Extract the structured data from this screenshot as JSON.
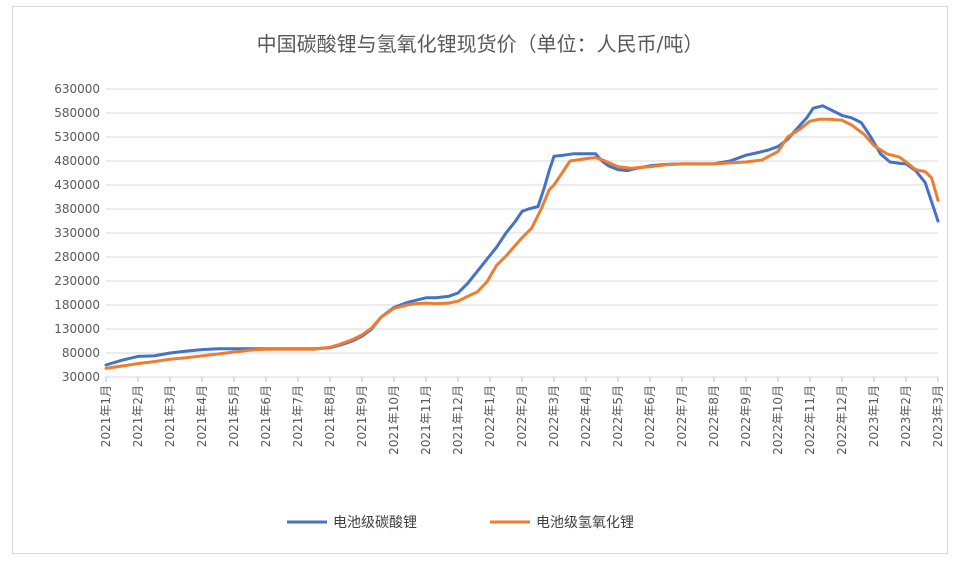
{
  "chart_data": {
    "type": "line",
    "title": "中国碳酸锂与氢氧化锂现货价（单位：人民币/吨）",
    "xlabel": "",
    "ylabel": "",
    "ylim": [
      30000,
      630000
    ],
    "y_ticks": [
      30000,
      80000,
      130000,
      180000,
      230000,
      280000,
      330000,
      380000,
      430000,
      480000,
      530000,
      580000,
      630000
    ],
    "y_tick_labels": [
      "30000",
      "80000",
      "130000",
      "180000",
      "230000",
      "280000",
      "330000",
      "380000",
      "430000",
      "480000",
      "530000",
      "580000",
      "630000"
    ],
    "x_tick_labels": [
      "2021年1月",
      "2021年2月",
      "2021年3月",
      "2021年4月",
      "2021年5月",
      "2021年6月",
      "2021年7月",
      "2021年8月",
      "2021年9月",
      "2021年10月",
      "2021年11月",
      "2021年12月",
      "2022年1月",
      "2022年2月",
      "2022年3月",
      "2022年4月",
      "2022年5月",
      "2022年6月",
      "2022年7月",
      "2022年8月",
      "2022年9月",
      "2022年10月",
      "2022年11月",
      "2022年12月",
      "2023年1月",
      "2023年2月",
      "2023年3月"
    ],
    "grid": true,
    "legend_position": "bottom",
    "series": [
      {
        "name": "电池级碳酸锂",
        "color": "#4472c4",
        "x": [
          0,
          0.5,
          1,
          1.5,
          2,
          2.5,
          3,
          3.5,
          4,
          4.5,
          5,
          5.5,
          6,
          6.5,
          7,
          7.3,
          7.7,
          8,
          8.3,
          8.6,
          9,
          9.4,
          9.7,
          10,
          10.3,
          10.7,
          11,
          11.3,
          11.6,
          11.9,
          12.2,
          12.5,
          12.8,
          13.0,
          13.2,
          13.5,
          13.7,
          13.85,
          14.0,
          14.3,
          14.6,
          15.0,
          15.3,
          15.5,
          15.7,
          16.0,
          16.3,
          16.6,
          17.0,
          17.5,
          18.0,
          18.5,
          19.0,
          19.5,
          19.8,
          20.0,
          20.4,
          20.7,
          21.0,
          21.3,
          21.6,
          21.9,
          22.1,
          22.4,
          22.7,
          23.0,
          23.3,
          23.6,
          23.9,
          24.2,
          24.5,
          24.8,
          25.0,
          25.3,
          25.6,
          25.8,
          26.0
        ],
        "values": [
          55000,
          65000,
          73000,
          74000,
          80000,
          84000,
          87000,
          89000,
          89000,
          89000,
          89000,
          89000,
          89000,
          89000,
          91000,
          96000,
          105000,
          115000,
          130000,
          155000,
          175000,
          185000,
          190000,
          195000,
          195000,
          198000,
          205000,
          225000,
          250000,
          275000,
          300000,
          330000,
          355000,
          375000,
          380000,
          385000,
          425000,
          460000,
          490000,
          492000,
          495000,
          495000,
          495000,
          480000,
          470000,
          462000,
          460000,
          465000,
          470000,
          473000,
          474000,
          474000,
          474000,
          480000,
          487000,
          492000,
          498000,
          503000,
          510000,
          525000,
          548000,
          570000,
          590000,
          595000,
          585000,
          575000,
          570000,
          560000,
          530000,
          495000,
          478000,
          475000,
          474000,
          460000,
          435000,
          395000,
          355000
        ]
      },
      {
        "name": "电池级氢氧化锂",
        "color": "#ed7d31",
        "x": [
          0,
          0.5,
          1,
          1.5,
          2,
          2.5,
          3,
          3.5,
          4,
          4.5,
          5,
          5.5,
          6,
          6.5,
          7,
          7.3,
          7.7,
          8,
          8.3,
          8.6,
          9,
          9.4,
          9.7,
          10,
          10.3,
          10.7,
          11,
          11.3,
          11.6,
          11.9,
          12.2,
          12.5,
          12.8,
          13.0,
          13.3,
          13.6,
          13.85,
          14.0,
          14.2,
          14.5,
          14.8,
          15.0,
          15.3,
          15.6,
          16.0,
          16.4,
          17.0,
          17.5,
          18.0,
          18.5,
          19.0,
          19.5,
          20.0,
          20.5,
          21.0,
          21.3,
          21.7,
          22.0,
          22.3,
          22.6,
          23.0,
          23.3,
          23.7,
          24.0,
          24.4,
          24.8,
          25.0,
          25.3,
          25.6,
          25.8,
          26.0
        ],
        "values": [
          48000,
          53000,
          58000,
          62000,
          67000,
          70000,
          74000,
          78000,
          82000,
          86000,
          88000,
          88000,
          88000,
          88000,
          92000,
          98000,
          108000,
          118000,
          132000,
          155000,
          173000,
          180000,
          183000,
          184000,
          183000,
          184000,
          188000,
          198000,
          207000,
          228000,
          262000,
          282000,
          305000,
          320000,
          340000,
          380000,
          420000,
          430000,
          450000,
          480000,
          483000,
          485000,
          487000,
          480000,
          468000,
          465000,
          468000,
          472000,
          474000,
          474000,
          474000,
          476000,
          478000,
          482000,
          500000,
          530000,
          547000,
          563000,
          567000,
          567000,
          565000,
          555000,
          535000,
          512000,
          495000,
          488000,
          478000,
          462000,
          458000,
          445000,
          398000
        ]
      }
    ]
  }
}
